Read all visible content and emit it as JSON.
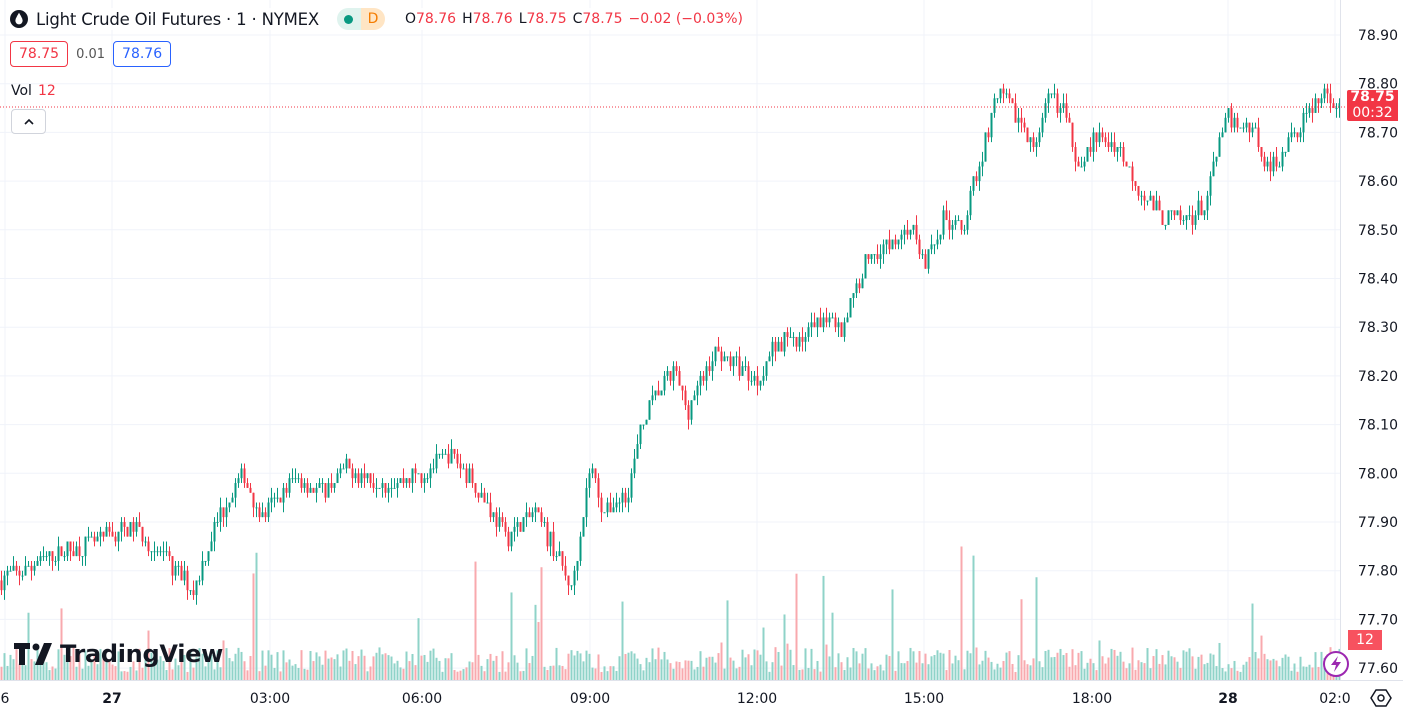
{
  "header": {
    "title": "Light Crude Oil Futures · 1 · NYMEX",
    "status_badge": "D",
    "ohlc": {
      "o_label": "O",
      "o": "78.76",
      "h_label": "H",
      "h": "78.76",
      "l_label": "L",
      "l": "78.75",
      "c_label": "C",
      "c": "78.75",
      "change": "−0.02 (−0.03%)"
    },
    "sell_price": "78.75",
    "spread": "0.01",
    "buy_price": "78.76",
    "volume_label": "Vol",
    "volume_value": "12"
  },
  "branding": {
    "logo_text": "TradingView"
  },
  "price_scale": {
    "last_price": "78.75",
    "countdown": "00:32",
    "volume_badge": "12"
  },
  "colors": {
    "up": "#089981",
    "down": "#f23645",
    "up_volume": "#8fd3c8",
    "down_volume": "#f8a9ae",
    "last_price_line": "#f23645",
    "grid": "#f0f3fa"
  },
  "icons": {
    "symbol": "oil-drop-icon",
    "collapse": "chevron-up-icon",
    "alert": "lightning-icon",
    "settings": "gear-hexagon-icon"
  },
  "chart_data": {
    "type": "candlestick",
    "interval": "1 minute",
    "y_ticks": [
      "78.90",
      "78.80",
      "78.70",
      "78.60",
      "78.50",
      "78.40",
      "78.30",
      "78.20",
      "78.10",
      "78.00",
      "77.90",
      "77.80",
      "77.70",
      "77.60"
    ],
    "ylim": [
      77.6,
      78.9
    ],
    "x_ticks": [
      "6",
      "27",
      "03:00",
      "06:00",
      "09:00",
      "12:00",
      "15:00",
      "18:00",
      "28",
      "02:0"
    ],
    "grid": true,
    "approx_close_path": [
      [
        "26 22:00",
        77.78
      ],
      [
        "26 23:00",
        77.83
      ],
      [
        "27 00:00",
        77.87
      ],
      [
        "27 00:30",
        77.89
      ],
      [
        "27 01:15",
        77.8
      ],
      [
        "27 01:35",
        77.76
      ],
      [
        "27 02:00",
        77.9
      ],
      [
        "27 02:30",
        78.0
      ],
      [
        "27 02:50",
        77.91
      ],
      [
        "27 03:30",
        77.99
      ],
      [
        "27 04:00",
        77.96
      ],
      [
        "27 04:30",
        78.01
      ],
      [
        "27 05:00",
        77.99
      ],
      [
        "27 05:30",
        77.98
      ],
      [
        "27 06:00",
        78.0
      ],
      [
        "27 06:30",
        78.04
      ],
      [
        "27 07:00",
        77.97
      ],
      [
        "27 07:30",
        77.87
      ],
      [
        "27 08:00",
        77.92
      ],
      [
        "27 08:20",
        77.85
      ],
      [
        "27 08:40",
        77.76
      ],
      [
        "27 09:00",
        78.02
      ],
      [
        "27 09:15",
        77.92
      ],
      [
        "27 09:40",
        77.96
      ],
      [
        "27 10:00",
        78.13
      ],
      [
        "27 10:30",
        78.21
      ],
      [
        "27 10:45",
        78.13
      ],
      [
        "27 11:15",
        78.25
      ],
      [
        "27 11:40",
        78.22
      ],
      [
        "27 12:00",
        78.19
      ],
      [
        "27 12:20",
        78.27
      ],
      [
        "27 12:50",
        78.28
      ],
      [
        "27 13:20",
        78.33
      ],
      [
        "27 13:30",
        78.29
      ],
      [
        "27 14:00",
        78.45
      ],
      [
        "27 14:30",
        78.48
      ],
      [
        "27 14:45",
        78.51
      ],
      [
        "27 15:00",
        78.43
      ],
      [
        "27 15:20",
        78.52
      ],
      [
        "27 15:40",
        78.5
      ],
      [
        "27 16:00",
        78.65
      ],
      [
        "27 16:20",
        78.78
      ],
      [
        "27 16:40",
        78.73
      ],
      [
        "27 17:00",
        78.67
      ],
      [
        "27 17:15",
        78.78
      ],
      [
        "27 17:30",
        78.74
      ],
      [
        "27 17:45",
        78.64
      ],
      [
        "27 18:00",
        78.68
      ],
      [
        "27 19:00",
        78.68
      ],
      [
        "27 20:00",
        78.59
      ],
      [
        "27 21:00",
        78.53
      ],
      [
        "27 22:00",
        78.52
      ],
      [
        "27 23:00",
        78.55
      ],
      [
        "27 23:30",
        78.66
      ],
      [
        "28 00:00",
        78.73
      ],
      [
        "28 00:30",
        78.7
      ],
      [
        "28 00:45",
        78.62
      ],
      [
        "28 01:15",
        78.7
      ],
      [
        "28 01:40",
        78.77
      ],
      [
        "28 02:00",
        78.77
      ],
      [
        "28 02:05",
        78.75
      ]
    ],
    "last_price": 78.75,
    "last_volume": 12
  }
}
